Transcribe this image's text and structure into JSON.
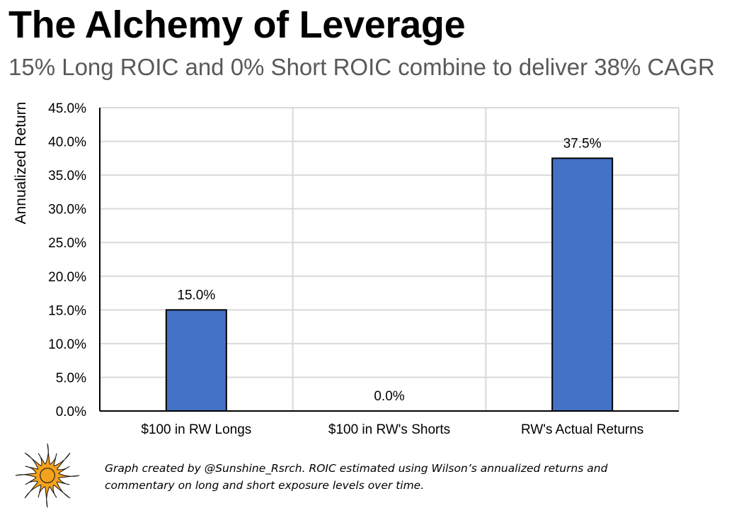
{
  "title": "The Alchemy of Leverage",
  "subtitle": "15% Long ROIC and 0% Short ROIC combine to deliver 38% CAGR",
  "footnote": "Graph created by @Sunshine_Rsrch. ROIC estimated using Wilson’s annualized returns and commentary on long and short exposure levels over time.",
  "colors": {
    "bar": "#4472c4",
    "bar_border": "#000000",
    "grid": "#d9d9d9",
    "axis": "#000000",
    "logo_primary": "#f4a21d",
    "logo_secondary": "#1a1a1a"
  },
  "logo_icon": "sun-logo-icon",
  "chart_data": {
    "type": "bar",
    "title": "",
    "xlabel": "",
    "ylabel": "Annualized Return",
    "categories": [
      "$100 in RW Longs",
      "$100 in RW's Shorts",
      "RW's Actual Returns"
    ],
    "values": [
      15.0,
      0.0,
      37.5
    ],
    "data_labels": [
      "15.0%",
      "0.0%",
      "37.5%"
    ],
    "ylim": [
      0,
      45
    ],
    "yticks": [
      0,
      5,
      10,
      15,
      20,
      25,
      30,
      35,
      40,
      45
    ],
    "ytick_labels": [
      "0.0%",
      "5.0%",
      "10.0%",
      "15.0%",
      "20.0%",
      "25.0%",
      "30.0%",
      "35.0%",
      "40.0%",
      "45.0%"
    ],
    "grid": true,
    "legend": "none"
  }
}
